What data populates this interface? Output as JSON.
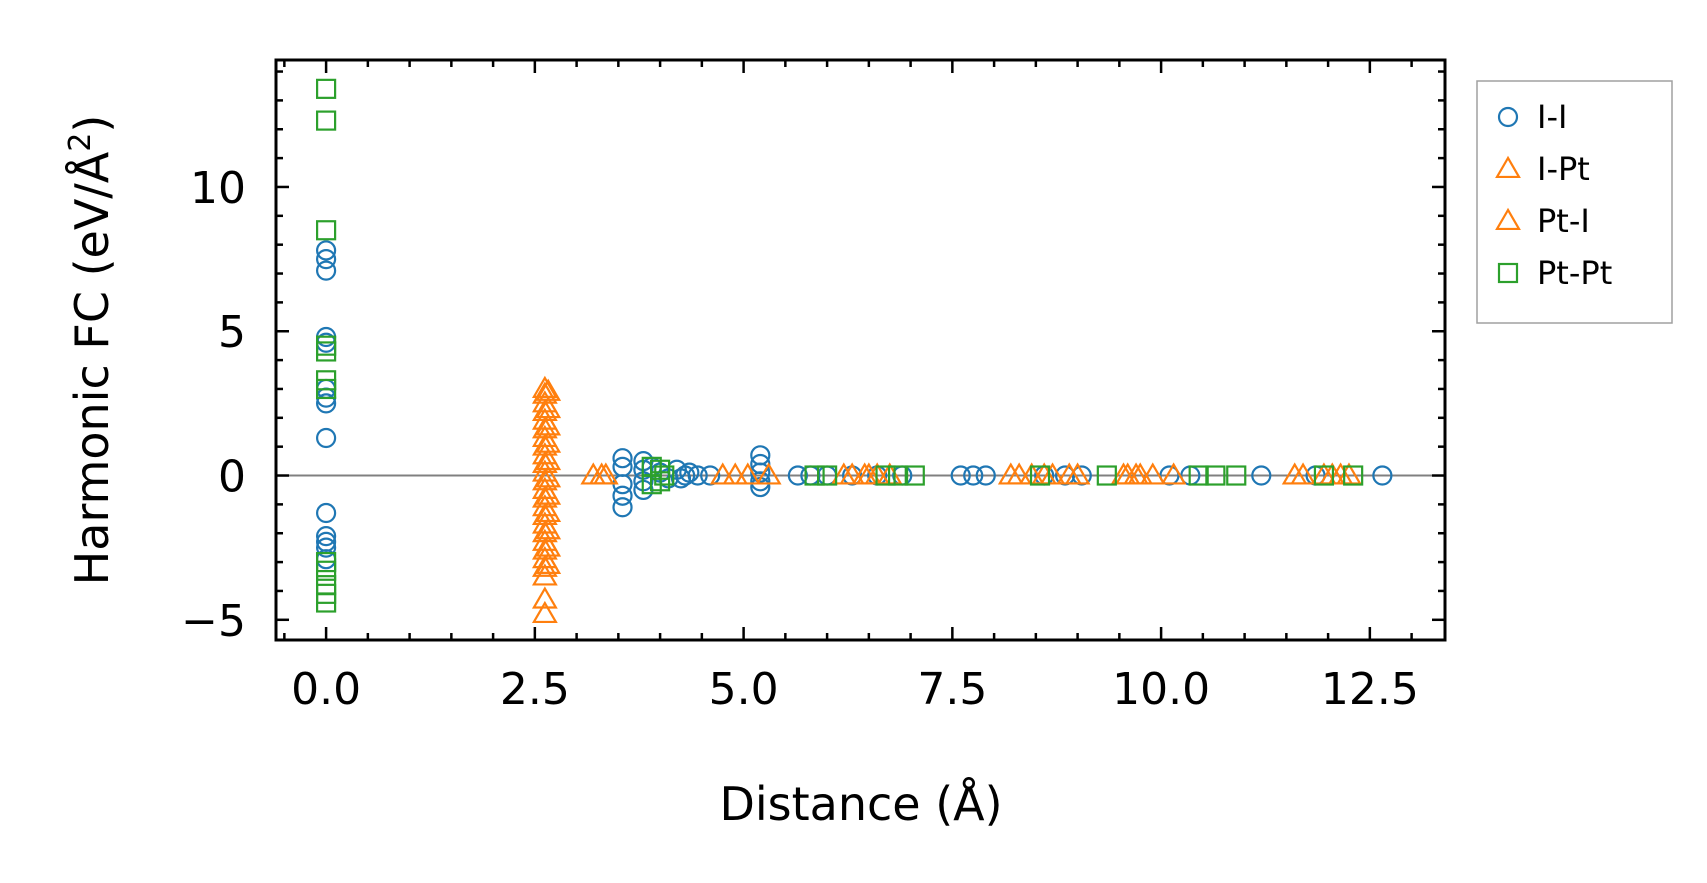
{
  "chart_data": {
    "type": "scatter",
    "title": "",
    "xlabel": "Distance (Å)",
    "ylabel": "Harmonic FC (eV/Å",
    "ylabel_sup": "2",
    "ylabel_tail": ")",
    "xlim": [
      -0.6,
      13.4
    ],
    "ylim": [
      -5.7,
      14.4
    ],
    "xticks": [
      0.0,
      2.5,
      5.0,
      7.5,
      10.0,
      12.5
    ],
    "xtick_labels": [
      "0.0",
      "2.5",
      "5.0",
      "7.5",
      "10.0",
      "12.5"
    ],
    "yticks": [
      -5,
      0,
      5,
      10
    ],
    "ytick_labels": [
      "−5",
      "0",
      "5",
      "10"
    ],
    "zero_line": 0,
    "legend_position": "outside-right-top",
    "series": [
      {
        "name": "I-I",
        "marker": "circle",
        "color": "#1f77b4",
        "points": [
          [
            0,
            7.8
          ],
          [
            0,
            7.5
          ],
          [
            0,
            7.1
          ],
          [
            0,
            4.8
          ],
          [
            0,
            4.6
          ],
          [
            0,
            3.0
          ],
          [
            0,
            2.7
          ],
          [
            0,
            2.5
          ],
          [
            0,
            1.3
          ],
          [
            0,
            -1.3
          ],
          [
            0,
            -2.1
          ],
          [
            0,
            -2.3
          ],
          [
            0,
            -2.5
          ],
          [
            0,
            -2.9
          ],
          [
            3.55,
            0.6
          ],
          [
            3.55,
            0.3
          ],
          [
            3.55,
            -0.3
          ],
          [
            3.55,
            -0.7
          ],
          [
            3.55,
            -1.1
          ],
          [
            3.8,
            0.5
          ],
          [
            3.8,
            0.2
          ],
          [
            3.8,
            -0.2
          ],
          [
            3.8,
            -0.5
          ],
          [
            3.9,
            0.3
          ],
          [
            4.0,
            0.1
          ],
          [
            4.1,
            -0.1
          ],
          [
            4.2,
            0.2
          ],
          [
            4.25,
            -0.1
          ],
          [
            4.3,
            0.0
          ],
          [
            4.35,
            0.1
          ],
          [
            4.45,
            0.0
          ],
          [
            4.6,
            0.0
          ],
          [
            5.2,
            0.7
          ],
          [
            5.2,
            0.4
          ],
          [
            5.2,
            0.1
          ],
          [
            5.2,
            -0.2
          ],
          [
            5.2,
            -0.4
          ],
          [
            5.65,
            0.0
          ],
          [
            5.8,
            0.0
          ],
          [
            6.0,
            0.0
          ],
          [
            6.3,
            0.0
          ],
          [
            6.6,
            0.0
          ],
          [
            6.9,
            0.0
          ],
          [
            7.6,
            0.0
          ],
          [
            7.75,
            0.0
          ],
          [
            7.9,
            0.0
          ],
          [
            8.6,
            0.0
          ],
          [
            8.85,
            0.0
          ],
          [
            9.05,
            0.0
          ],
          [
            10.1,
            0.0
          ],
          [
            10.35,
            0.0
          ],
          [
            11.2,
            0.0
          ],
          [
            11.85,
            0.0
          ],
          [
            12.65,
            0.0
          ]
        ]
      },
      {
        "name": "I-Pt",
        "marker": "triangle",
        "color": "#ff7f0e",
        "points": [
          [
            2.62,
            3.0
          ],
          [
            2.62,
            2.8
          ],
          [
            2.62,
            2.5
          ],
          [
            2.62,
            2.2
          ],
          [
            2.62,
            1.9
          ],
          [
            2.62,
            1.6
          ],
          [
            2.62,
            1.3
          ],
          [
            2.62,
            1.0
          ],
          [
            2.62,
            0.7
          ],
          [
            2.62,
            0.4
          ],
          [
            2.62,
            0.1
          ],
          [
            2.62,
            -0.2
          ],
          [
            2.62,
            -0.5
          ],
          [
            2.62,
            -0.8
          ],
          [
            2.62,
            -1.1
          ],
          [
            2.62,
            -1.4
          ],
          [
            2.62,
            -1.7
          ],
          [
            2.62,
            -2.0
          ],
          [
            2.62,
            -2.3
          ],
          [
            2.62,
            -2.6
          ],
          [
            2.62,
            -2.9
          ],
          [
            2.62,
            -3.2
          ],
          [
            2.62,
            -3.5
          ],
          [
            2.62,
            -4.3
          ],
          [
            2.62,
            -4.8
          ],
          [
            3.2,
            0.0
          ],
          [
            3.35,
            0.0
          ],
          [
            4.9,
            0.0
          ],
          [
            5.3,
            0.0
          ],
          [
            6.3,
            0.0
          ],
          [
            6.45,
            0.0
          ],
          [
            6.6,
            0.0
          ],
          [
            8.3,
            0.0
          ],
          [
            8.6,
            0.0
          ],
          [
            8.9,
            0.0
          ],
          [
            9.6,
            0.0
          ],
          [
            9.75,
            0.0
          ],
          [
            9.9,
            0.0
          ],
          [
            11.6,
            0.0
          ],
          [
            11.95,
            0.0
          ],
          [
            12.15,
            0.0
          ]
        ]
      },
      {
        "name": "Pt-I",
        "marker": "triangle",
        "color": "#ff7f0e",
        "points": [
          [
            2.66,
            2.9
          ],
          [
            2.66,
            2.3
          ],
          [
            2.66,
            1.7
          ],
          [
            2.66,
            1.1
          ],
          [
            2.66,
            0.5
          ],
          [
            2.66,
            -0.1
          ],
          [
            2.66,
            -0.7
          ],
          [
            2.66,
            -1.3
          ],
          [
            2.66,
            -1.9
          ],
          [
            2.66,
            -2.5
          ],
          [
            2.66,
            -3.1
          ],
          [
            3.3,
            0.0
          ],
          [
            4.75,
            0.0
          ],
          [
            5.05,
            0.0
          ],
          [
            6.2,
            0.0
          ],
          [
            6.5,
            0.0
          ],
          [
            6.75,
            0.0
          ],
          [
            8.2,
            0.0
          ],
          [
            8.45,
            0.0
          ],
          [
            8.7,
            0.0
          ],
          [
            9.0,
            0.0
          ],
          [
            9.55,
            0.0
          ],
          [
            9.7,
            0.0
          ],
          [
            10.15,
            0.0
          ],
          [
            11.7,
            0.0
          ],
          [
            12.05,
            0.0
          ],
          [
            12.25,
            0.0
          ]
        ]
      },
      {
        "name": "Pt-Pt",
        "marker": "square",
        "color": "#2ca02c",
        "points": [
          [
            0,
            13.4
          ],
          [
            0,
            12.3
          ],
          [
            0,
            8.5
          ],
          [
            0,
            4.5
          ],
          [
            0,
            4.3
          ],
          [
            0,
            3.3
          ],
          [
            0,
            3.0
          ],
          [
            0,
            -3.0
          ],
          [
            0,
            -3.3
          ],
          [
            0,
            -3.8
          ],
          [
            0,
            -4.1
          ],
          [
            0,
            -4.4
          ],
          [
            3.9,
            0.3
          ],
          [
            3.9,
            -0.3
          ],
          [
            4.0,
            0.2
          ],
          [
            4.0,
            -0.2
          ],
          [
            4.05,
            0.0
          ],
          [
            5.85,
            0.0
          ],
          [
            6.0,
            0.0
          ],
          [
            6.7,
            0.0
          ],
          [
            6.85,
            0.0
          ],
          [
            7.05,
            0.0
          ],
          [
            8.55,
            0.0
          ],
          [
            9.35,
            0.0
          ],
          [
            10.45,
            0.0
          ],
          [
            10.65,
            0.0
          ],
          [
            10.9,
            0.0
          ],
          [
            11.95,
            0.0
          ],
          [
            12.3,
            0.0
          ]
        ]
      }
    ]
  }
}
